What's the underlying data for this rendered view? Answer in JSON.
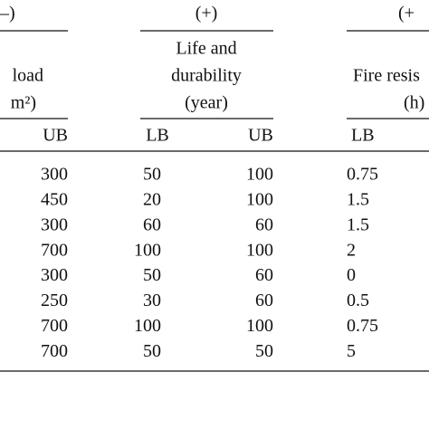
{
  "table": {
    "groups": [
      {
        "sign": "–)",
        "title": [
          "load",
          "m²)"
        ]
      },
      {
        "sign": "(+)",
        "title": [
          "Life and",
          "durability",
          "(year)"
        ]
      },
      {
        "sign": "(+",
        "title": [
          "Fire resis",
          "(h)"
        ]
      }
    ],
    "subheaders": [
      "UB",
      "LB",
      "UB",
      "LB"
    ],
    "rows": [
      [
        300,
        50,
        100,
        0.75
      ],
      [
        450,
        20,
        100,
        1.5
      ],
      [
        300,
        60,
        60,
        1.5
      ],
      [
        700,
        100,
        100,
        2
      ],
      [
        300,
        50,
        60,
        0
      ],
      [
        250,
        30,
        60,
        0.5
      ],
      [
        700,
        100,
        100,
        0.75
      ],
      [
        700,
        50,
        50,
        5
      ]
    ]
  }
}
